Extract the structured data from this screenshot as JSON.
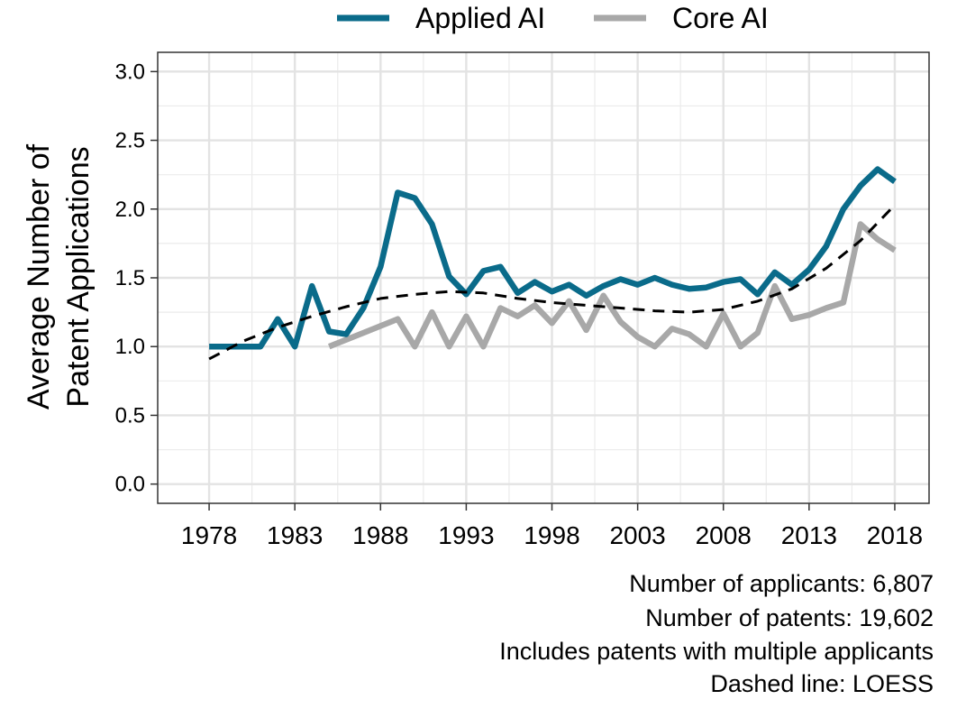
{
  "chart_data": {
    "type": "line",
    "ylabel_lines": [
      "Average Number of",
      "Patent Applications"
    ],
    "xlabel": "",
    "xlim": [
      1975,
      2020
    ],
    "ylim": [
      -0.14,
      3.14
    ],
    "x_ticks": [
      1978,
      1983,
      1988,
      1993,
      1998,
      2003,
      2008,
      2013,
      2018
    ],
    "x_tick_labels": [
      "1978",
      "1983",
      "1988",
      "1993",
      "1998",
      "2003",
      "2008",
      "2013",
      "2018"
    ],
    "y_ticks": [
      0,
      0.5,
      1,
      1.5,
      2,
      2.5,
      3
    ],
    "y_tick_labels": [
      "0.0",
      "0.5",
      "1.0",
      "1.5",
      "2.0",
      "2.5",
      "3.0"
    ],
    "grid": true,
    "legend_position": "top",
    "series": [
      {
        "name": "Applied AI",
        "color": "#0a6b8a",
        "x": [
          1978,
          1979,
          1980,
          1981,
          1982,
          1983,
          1984,
          1985,
          1986,
          1987,
          1988,
          1989,
          1990,
          1991,
          1992,
          1993,
          1994,
          1995,
          1996,
          1997,
          1998,
          1999,
          2000,
          2001,
          2002,
          2003,
          2004,
          2005,
          2006,
          2007,
          2008,
          2009,
          2010,
          2011,
          2012,
          2013,
          2014,
          2015,
          2016,
          2017,
          2018
        ],
        "values": [
          1.0,
          1.0,
          1.0,
          1.0,
          1.2,
          1.0,
          1.44,
          1.11,
          1.09,
          1.28,
          1.58,
          2.12,
          2.08,
          1.89,
          1.51,
          1.38,
          1.55,
          1.58,
          1.39,
          1.47,
          1.4,
          1.45,
          1.37,
          1.44,
          1.49,
          1.45,
          1.5,
          1.45,
          1.42,
          1.43,
          1.47,
          1.49,
          1.38,
          1.54,
          1.45,
          1.56,
          1.73,
          2.0,
          2.17,
          2.29,
          2.2
        ]
      },
      {
        "name": "Core AI",
        "color": "#a8a8a8",
        "x": [
          1985,
          1986,
          1987,
          1988,
          1989,
          1990,
          1991,
          1992,
          1993,
          1994,
          1995,
          1996,
          1997,
          1998,
          1999,
          2000,
          2001,
          2002,
          2003,
          2004,
          2005,
          2006,
          2007,
          2008,
          2009,
          2010,
          2011,
          2012,
          2013,
          2014,
          2015,
          2016,
          2017,
          2018
        ],
        "values": [
          1.0,
          1.05,
          1.1,
          1.15,
          1.2,
          1.0,
          1.25,
          1.0,
          1.22,
          1.0,
          1.28,
          1.22,
          1.3,
          1.17,
          1.33,
          1.12,
          1.37,
          1.18,
          1.07,
          1.0,
          1.13,
          1.09,
          1.0,
          1.24,
          1.0,
          1.1,
          1.44,
          1.2,
          1.23,
          1.28,
          1.32,
          1.89,
          1.78,
          1.7
        ]
      },
      {
        "name": "LOESS",
        "color": "#000000",
        "dashed": true,
        "x": [
          1978,
          1980,
          1982,
          1984,
          1986,
          1988,
          1990,
          1992,
          1994,
          1996,
          1998,
          2000,
          2002,
          2004,
          2006,
          2008,
          2010,
          2012,
          2014,
          2016,
          2018
        ],
        "values": [
          0.91,
          1.04,
          1.14,
          1.22,
          1.29,
          1.35,
          1.38,
          1.4,
          1.39,
          1.35,
          1.32,
          1.3,
          1.28,
          1.26,
          1.25,
          1.27,
          1.33,
          1.42,
          1.57,
          1.77,
          2.03
        ]
      }
    ],
    "annotations": [
      "Number of applicants: 6,807",
      "Number of patents: 19,602",
      "Includes patents with multiple applicants",
      "Dashed line: LOESS"
    ]
  }
}
